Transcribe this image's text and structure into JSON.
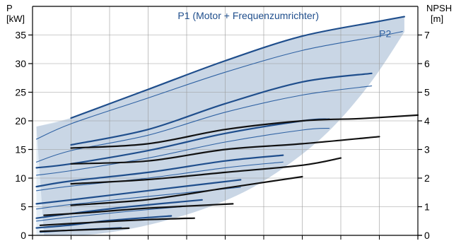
{
  "chart_data": {
    "type": "line",
    "title": "",
    "left_axis": {
      "label": "P",
      "unit": "[kW]",
      "range": [
        0,
        40
      ],
      "ticks": [
        0,
        5,
        10,
        15,
        20,
        25,
        30,
        35
      ]
    },
    "right_axis": {
      "label": "NPSH",
      "unit": "[m]",
      "range": [
        0,
        8
      ],
      "ticks": [
        0,
        1,
        2,
        3,
        4,
        5,
        6,
        7
      ]
    },
    "x_axis": {
      "range": [
        0,
        10
      ],
      "grid_count": 10,
      "tick_labels": []
    },
    "grid": true,
    "colors": {
      "envelope_fill": "#c9d6e5",
      "envelope_fill_light": "#e3edf6",
      "p1": "#1f4e8c",
      "p2": "#2f62a3",
      "npsh": "#111111",
      "grid": "#9a9a9a",
      "annotation": "#1f4e8c"
    },
    "annotations": [
      {
        "text": "P1 (Motor + Frequenzumrichter)",
        "x": 5.6,
        "y": 37.8,
        "color": "#1f4e8c"
      },
      {
        "text": "P2",
        "x": 9.15,
        "y": 34.6,
        "color": "#2f62a3"
      }
    ],
    "envelope_upper": [
      [
        0.1,
        19.0
      ],
      [
        1.0,
        20.5
      ],
      [
        3.0,
        25.5
      ],
      [
        5.0,
        30.5
      ],
      [
        7.0,
        34.8
      ],
      [
        9.0,
        37.4
      ],
      [
        9.65,
        38.2
      ]
    ],
    "envelope_lower": [
      [
        9.65,
        35.5
      ],
      [
        8.7,
        26.0
      ],
      [
        7.5,
        17.0
      ],
      [
        6.0,
        9.5
      ],
      [
        4.6,
        5.0
      ],
      [
        3.0,
        1.8
      ],
      [
        1.6,
        0.2
      ],
      [
        0.3,
        0.0
      ]
    ],
    "series": [
      {
        "group": "P1",
        "axis": "left",
        "points": [
          [
            1.0,
            20.5
          ],
          [
            3.0,
            25.5
          ],
          [
            5.0,
            30.5
          ],
          [
            7.0,
            34.8
          ],
          [
            9.0,
            37.4
          ],
          [
            9.65,
            38.2
          ]
        ]
      },
      {
        "group": "P2",
        "axis": "left",
        "points": [
          [
            0.1,
            16.8
          ],
          [
            1.0,
            19.5
          ],
          [
            3.0,
            24.0
          ],
          [
            5.0,
            28.5
          ],
          [
            7.0,
            32.3
          ],
          [
            9.0,
            34.8
          ],
          [
            9.6,
            35.6
          ]
        ]
      },
      {
        "group": "P1",
        "axis": "left",
        "points": [
          [
            1.0,
            15.8
          ],
          [
            3.0,
            18.5
          ],
          [
            5.0,
            23.0
          ],
          [
            7.0,
            26.8
          ],
          [
            8.8,
            28.3
          ]
        ]
      },
      {
        "group": "P2",
        "axis": "left",
        "points": [
          [
            0.1,
            12.8
          ],
          [
            1.0,
            14.8
          ],
          [
            3.0,
            17.5
          ],
          [
            5.0,
            21.5
          ],
          [
            7.0,
            24.5
          ],
          [
            8.8,
            26.1
          ]
        ]
      },
      {
        "group": "P1",
        "axis": "left",
        "points": [
          [
            0.1,
            11.8
          ],
          [
            1.0,
            12.5
          ],
          [
            3.0,
            14.8
          ],
          [
            5.0,
            17.8
          ],
          [
            7.0,
            20.0
          ],
          [
            7.7,
            20.3
          ]
        ]
      },
      {
        "group": "P2",
        "axis": "left",
        "points": [
          [
            0.1,
            10.5
          ],
          [
            1.0,
            11.3
          ],
          [
            3.0,
            13.5
          ],
          [
            5.0,
            16.3
          ],
          [
            7.0,
            18.4
          ],
          [
            7.7,
            18.7
          ]
        ]
      },
      {
        "group": "P1",
        "axis": "left",
        "points": [
          [
            0.1,
            8.5
          ],
          [
            1.0,
            9.5
          ],
          [
            3.0,
            11.0
          ],
          [
            5.0,
            13.0
          ],
          [
            6.5,
            14.0
          ]
        ]
      },
      {
        "group": "P2",
        "axis": "left",
        "points": [
          [
            0.1,
            7.8
          ],
          [
            1.0,
            8.6
          ],
          [
            3.0,
            10.0
          ],
          [
            5.0,
            11.8
          ],
          [
            6.5,
            12.8
          ]
        ]
      },
      {
        "group": "P1",
        "axis": "left",
        "points": [
          [
            0.1,
            5.5
          ],
          [
            1.0,
            6.2
          ],
          [
            3.0,
            7.8
          ],
          [
            4.5,
            9.0
          ],
          [
            5.4,
            9.7
          ]
        ]
      },
      {
        "group": "P2",
        "axis": "left",
        "points": [
          [
            0.1,
            4.6
          ],
          [
            1.0,
            5.4
          ],
          [
            3.0,
            6.8
          ],
          [
            4.5,
            7.8
          ],
          [
            5.4,
            8.4
          ]
        ]
      },
      {
        "group": "P1",
        "axis": "left",
        "points": [
          [
            0.1,
            3.0
          ],
          [
            1.0,
            3.8
          ],
          [
            2.5,
            5.0
          ],
          [
            4.4,
            6.2
          ]
        ]
      },
      {
        "group": "P2",
        "axis": "left",
        "points": [
          [
            0.1,
            2.5
          ],
          [
            1.0,
            3.2
          ],
          [
            2.5,
            4.2
          ],
          [
            4.4,
            5.3
          ]
        ]
      },
      {
        "group": "P1",
        "axis": "left",
        "points": [
          [
            0.1,
            1.3
          ],
          [
            1.0,
            1.8
          ],
          [
            2.0,
            2.6
          ],
          [
            3.6,
            3.4
          ]
        ]
      },
      {
        "group": "P1",
        "axis": "left",
        "points": [
          [
            0.2,
            0.6
          ],
          [
            1.0,
            0.9
          ],
          [
            2.3,
            1.3
          ]
        ]
      },
      {
        "group": "NPSH",
        "axis": "right",
        "points": [
          [
            1.0,
            3.05
          ],
          [
            3.0,
            3.2
          ],
          [
            5.0,
            3.7
          ],
          [
            7.0,
            4.0
          ],
          [
            8.5,
            4.08
          ],
          [
            10.0,
            4.2
          ]
        ]
      },
      {
        "group": "NPSH",
        "axis": "right",
        "points": [
          [
            1.0,
            2.5
          ],
          [
            3.0,
            2.6
          ],
          [
            5.0,
            3.0
          ],
          [
            7.0,
            3.2
          ],
          [
            9.0,
            3.45
          ]
        ]
      },
      {
        "group": "NPSH",
        "axis": "right",
        "points": [
          [
            1.0,
            1.8
          ],
          [
            3.0,
            1.95
          ],
          [
            5.0,
            2.2
          ],
          [
            7.0,
            2.45
          ],
          [
            8.0,
            2.7
          ]
        ]
      },
      {
        "group": "NPSH",
        "axis": "right",
        "points": [
          [
            1.0,
            1.05
          ],
          [
            3.0,
            1.25
          ],
          [
            5.0,
            1.65
          ],
          [
            7.0,
            2.05
          ]
        ]
      },
      {
        "group": "NPSH",
        "axis": "right",
        "points": [
          [
            0.3,
            0.7
          ],
          [
            1.5,
            0.8
          ],
          [
            3.0,
            0.95
          ],
          [
            5.2,
            1.1
          ]
        ]
      },
      {
        "group": "NPSH",
        "axis": "right",
        "points": [
          [
            0.2,
            0.35
          ],
          [
            1.5,
            0.45
          ],
          [
            3.0,
            0.55
          ],
          [
            4.2,
            0.6
          ]
        ]
      },
      {
        "group": "NPSH",
        "axis": "right",
        "points": [
          [
            0.2,
            0.14
          ],
          [
            1.5,
            0.2
          ],
          [
            2.5,
            0.25
          ]
        ]
      }
    ]
  }
}
